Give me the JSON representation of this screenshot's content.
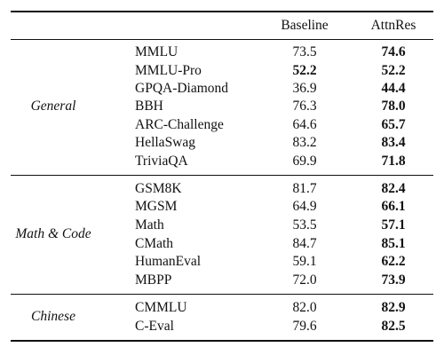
{
  "header": {
    "col_baseline": "Baseline",
    "col_attnres": "AttnRes"
  },
  "groups": [
    {
      "category": "General",
      "rows": [
        {
          "benchmark": "MMLU",
          "baseline": "73.5",
          "attnres": "74.6",
          "baseline_bold": false,
          "attnres_bold": true
        },
        {
          "benchmark": "MMLU-Pro",
          "baseline": "52.2",
          "attnres": "52.2",
          "baseline_bold": true,
          "attnres_bold": true
        },
        {
          "benchmark": "GPQA-Diamond",
          "baseline": "36.9",
          "attnres": "44.4",
          "baseline_bold": false,
          "attnres_bold": true
        },
        {
          "benchmark": "BBH",
          "baseline": "76.3",
          "attnres": "78.0",
          "baseline_bold": false,
          "attnres_bold": true
        },
        {
          "benchmark": "ARC-Challenge",
          "baseline": "64.6",
          "attnres": "65.7",
          "baseline_bold": false,
          "attnres_bold": true
        },
        {
          "benchmark": "HellaSwag",
          "baseline": "83.2",
          "attnres": "83.4",
          "baseline_bold": false,
          "attnres_bold": true
        },
        {
          "benchmark": "TriviaQA",
          "baseline": "69.9",
          "attnres": "71.8",
          "baseline_bold": false,
          "attnres_bold": true
        }
      ]
    },
    {
      "category": "Math & Code",
      "rows": [
        {
          "benchmark": "GSM8K",
          "baseline": "81.7",
          "attnres": "82.4",
          "baseline_bold": false,
          "attnres_bold": true
        },
        {
          "benchmark": "MGSM",
          "baseline": "64.9",
          "attnres": "66.1",
          "baseline_bold": false,
          "attnres_bold": true
        },
        {
          "benchmark": "Math",
          "baseline": "53.5",
          "attnres": "57.1",
          "baseline_bold": false,
          "attnres_bold": true
        },
        {
          "benchmark": "CMath",
          "baseline": "84.7",
          "attnres": "85.1",
          "baseline_bold": false,
          "attnres_bold": true
        },
        {
          "benchmark": "HumanEval",
          "baseline": "59.1",
          "attnres": "62.2",
          "baseline_bold": false,
          "attnres_bold": true
        },
        {
          "benchmark": "MBPP",
          "baseline": "72.0",
          "attnres": "73.9",
          "baseline_bold": false,
          "attnres_bold": true
        }
      ]
    },
    {
      "category": "Chinese",
      "rows": [
        {
          "benchmark": "CMMLU",
          "baseline": "82.0",
          "attnres": "82.9",
          "baseline_bold": false,
          "attnres_bold": true
        },
        {
          "benchmark": "C-Eval",
          "baseline": "79.6",
          "attnres": "82.5",
          "baseline_bold": false,
          "attnres_bold": true
        }
      ]
    }
  ]
}
